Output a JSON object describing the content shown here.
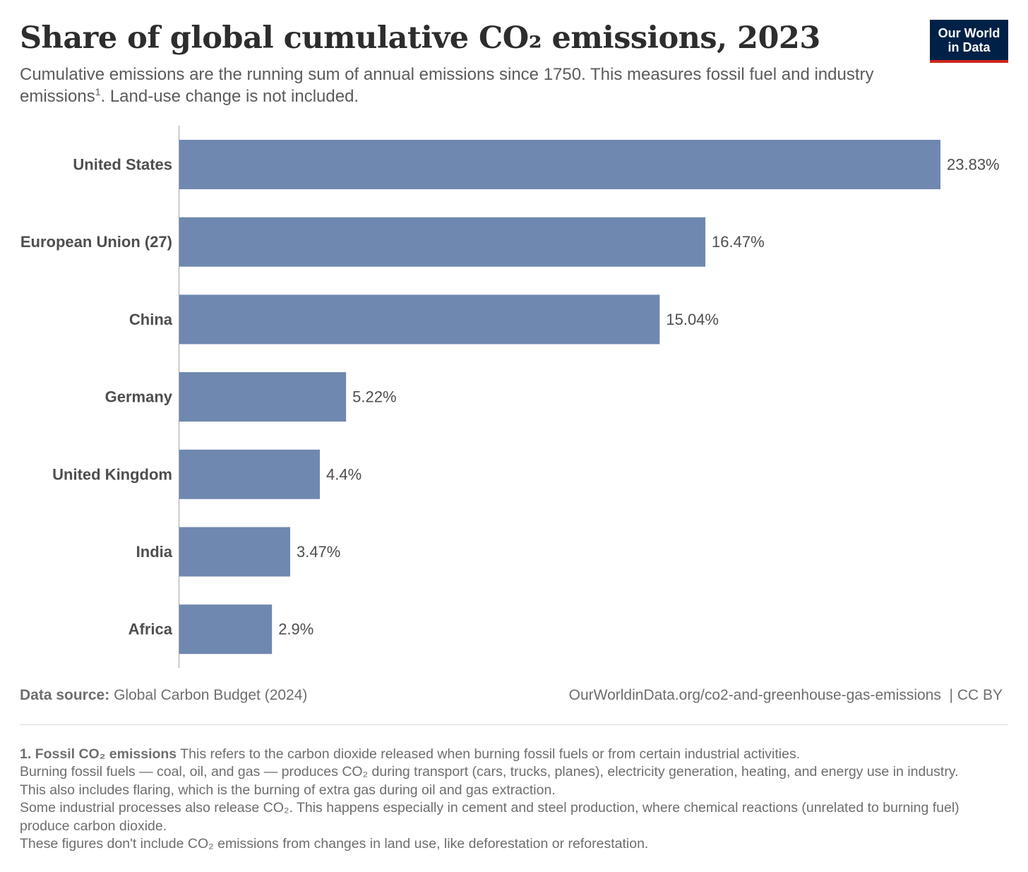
{
  "header": {
    "title": "Share of global cumulative CO₂ emissions, 2023",
    "subtitle_text": "Cumulative emissions are the running sum of annual emissions since 1750. This measures fossil fuel and industry emissions",
    "subtitle_sup": "1",
    "subtitle_tail": ". Land-use change is not included."
  },
  "logo": {
    "line1": "Our World",
    "line2": "in Data",
    "bg_color": "#002147",
    "accent_color": "#ce261e"
  },
  "chart_data": {
    "type": "bar",
    "orientation": "horizontal",
    "categories": [
      "United States",
      "European Union (27)",
      "China",
      "Germany",
      "United Kingdom",
      "India",
      "Africa"
    ],
    "values": [
      23.83,
      16.47,
      15.04,
      5.22,
      4.4,
      3.47,
      2.9
    ],
    "value_labels": [
      "23.83%",
      "16.47%",
      "15.04%",
      "5.22%",
      "4.4%",
      "3.47%",
      "2.9%"
    ],
    "unit": "%",
    "xlim": [
      0,
      23.83
    ],
    "bar_color": "#6f88b0",
    "grid": false,
    "legend": "none"
  },
  "footer": {
    "source_label": "Data source:",
    "source_value": "Global Carbon Budget (2024)",
    "url": "OurWorldinData.org/co2-and-greenhouse-gas-emissions",
    "license": "| CC BY"
  },
  "footnote": {
    "heading": "1. Fossil CO₂ emissions",
    "intro": "This refers to the carbon dioxide released when burning fossil fuels or from certain industrial activities.",
    "p1": "Burning fossil fuels — coal, oil, and gas — produces CO₂ during transport (cars, trucks, planes), electricity generation, heating, and energy use in industry. This also includes flaring, which is the burning of extra gas during oil and gas extraction.",
    "p2": "Some industrial processes also release CO₂. This happens especially in cement and steel production, where chemical reactions (unrelated to burning fuel) produce carbon dioxide.",
    "p3": "These figures don't include CO₂ emissions from changes in land use, like deforestation or reforestation."
  }
}
